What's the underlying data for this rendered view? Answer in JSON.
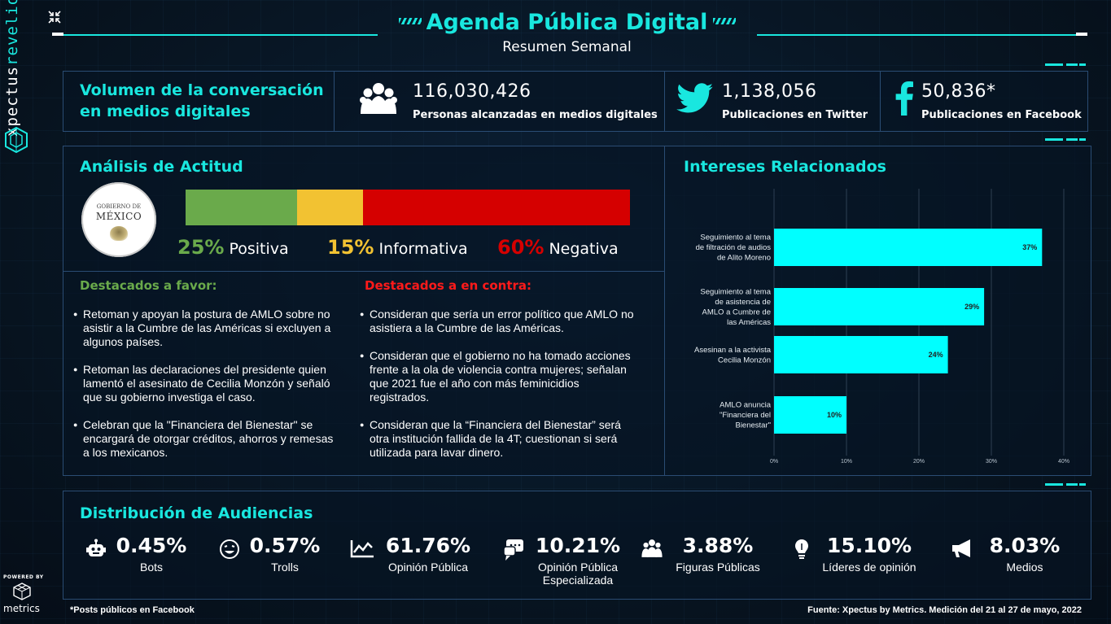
{
  "brand": {
    "name_part1": "xpectus",
    "name_part2": "revelio"
  },
  "powered": {
    "label": "POWERED BY",
    "name": "metrics"
  },
  "header": {
    "title": "Agenda Pública Digital",
    "subtitle": "Resumen Semanal"
  },
  "volume": {
    "title_line1": "Volumen de la conversación",
    "title_line2": "en medios digitales",
    "reach": {
      "value": "116,030,426",
      "label": "Personas alcanzadas en medios digitales",
      "icon": "people-icon"
    },
    "twitter": {
      "value": "1,138,056",
      "label": "Publicaciones en Twitter",
      "icon": "twitter-icon"
    },
    "facebook": {
      "value": "50,836*",
      "label": "Publicaciones en Facebook",
      "icon": "facebook-icon"
    }
  },
  "attitude": {
    "title": "Análisis de Actitud",
    "seal_line1": "GOBIERNO DE",
    "seal_line2": "MÉXICO",
    "segments": [
      {
        "pct_label": "25%",
        "name": "Positiva",
        "value": 25,
        "color": "#6aaa4b"
      },
      {
        "pct_label": "15%",
        "name": "Informativa",
        "value": 15,
        "color": "#f2c232"
      },
      {
        "pct_label": "60%",
        "name": "Negativa",
        "value": 60,
        "color": "#d50000"
      }
    ]
  },
  "highlights": {
    "favor_title": "Destacados a favor:",
    "contra_title": "Destacados a en contra:",
    "favor": [
      "Retoman y apoyan la postura de AMLO sobre no asistir a la Cumbre de las Américas si excluyen a algunos países.",
      "Retoman las declaraciones del presidente quien lamentó el asesinato de Cecilia Monzón y señaló que su gobierno investiga el caso.",
      "Celebran que la \"Financiera del Bienestar\" se encargará de otorgar créditos, ahorros y remesas a los mexicanos."
    ],
    "contra": [
      "Consideran que sería un error político que AMLO no asistiera a la Cumbre de las Américas.",
      "Consideran que el gobierno no ha tomado acciones frente a la ola de violencia contra mujeres; señalan que 2021 fue el año con más feminicidios registrados.",
      "Consideran que la “Financiera del Bienestar” será otra institución fallida de la 4T; cuestionan si será utilizada para lavar dinero."
    ]
  },
  "interests": {
    "title": "Intereses Relacionados"
  },
  "chart_data": {
    "type": "bar",
    "orientation": "horizontal",
    "categories": [
      [
        "Seguimiento al tema",
        "de filtración de audios",
        "de Alito Moreno"
      ],
      [
        "Seguimiento al tema",
        "de asistencia de",
        "AMLO a Cumbre de",
        "las Américas"
      ],
      [
        "Asesinan a la activista",
        "Cecilia Monzón"
      ],
      [
        "AMLO anuncia",
        "\"Financiera del",
        "Bienestar\""
      ]
    ],
    "values": [
      37,
      29,
      24,
      10
    ],
    "data_labels": [
      "37%",
      "29%",
      "24%",
      "10%"
    ],
    "xlim": [
      0,
      40
    ],
    "xticks": [
      "0%",
      "10%",
      "20%",
      "30%",
      "40%"
    ],
    "grid": true,
    "bar_color": "#00ffff"
  },
  "audiences": {
    "title": "Distribución de Audiencias",
    "items": [
      {
        "value": "0.45%",
        "label": "Bots",
        "icon": "robot-icon"
      },
      {
        "value": "0.57%",
        "label": "Trolls",
        "icon": "troll-face-icon"
      },
      {
        "value": "61.76%",
        "label": "Opinión Pública",
        "icon": "chart-line-icon"
      },
      {
        "value": "10.21%",
        "label": "Opinión Pública Especializada",
        "icon": "chat-bubbles-icon"
      },
      {
        "value": "3.88%",
        "label": "Figuras Públicas",
        "icon": "people-icon"
      },
      {
        "value": "15.10%",
        "label": "Líderes de opinión",
        "icon": "lightbulb-icon"
      },
      {
        "value": "8.03%",
        "label": "Medios",
        "icon": "megaphone-icon"
      }
    ]
  },
  "footer": {
    "note": "*Posts públicos en Facebook",
    "source": "Fuente: Xpectus by Metrics. Medición del 21 al 27 de mayo, 2022"
  }
}
